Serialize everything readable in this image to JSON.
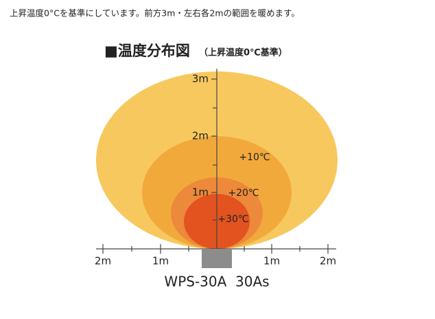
{
  "caption": "上昇温度0°Cを基準にしています。前方3m・左右各2mの範囲を暖めます。",
  "title": "■温度分布図",
  "subtitle": "（上昇温度0℃基準）",
  "vertical_axis": {
    "labels": [
      "3m",
      "2m",
      "1m"
    ]
  },
  "horizontal_axis": {
    "labels": [
      "2m",
      "1m",
      "1m",
      "2m"
    ]
  },
  "zones": {
    "labels": [
      "+10℃",
      "+20℃",
      "+30℃"
    ]
  },
  "model": "WPS-30A  30As"
}
